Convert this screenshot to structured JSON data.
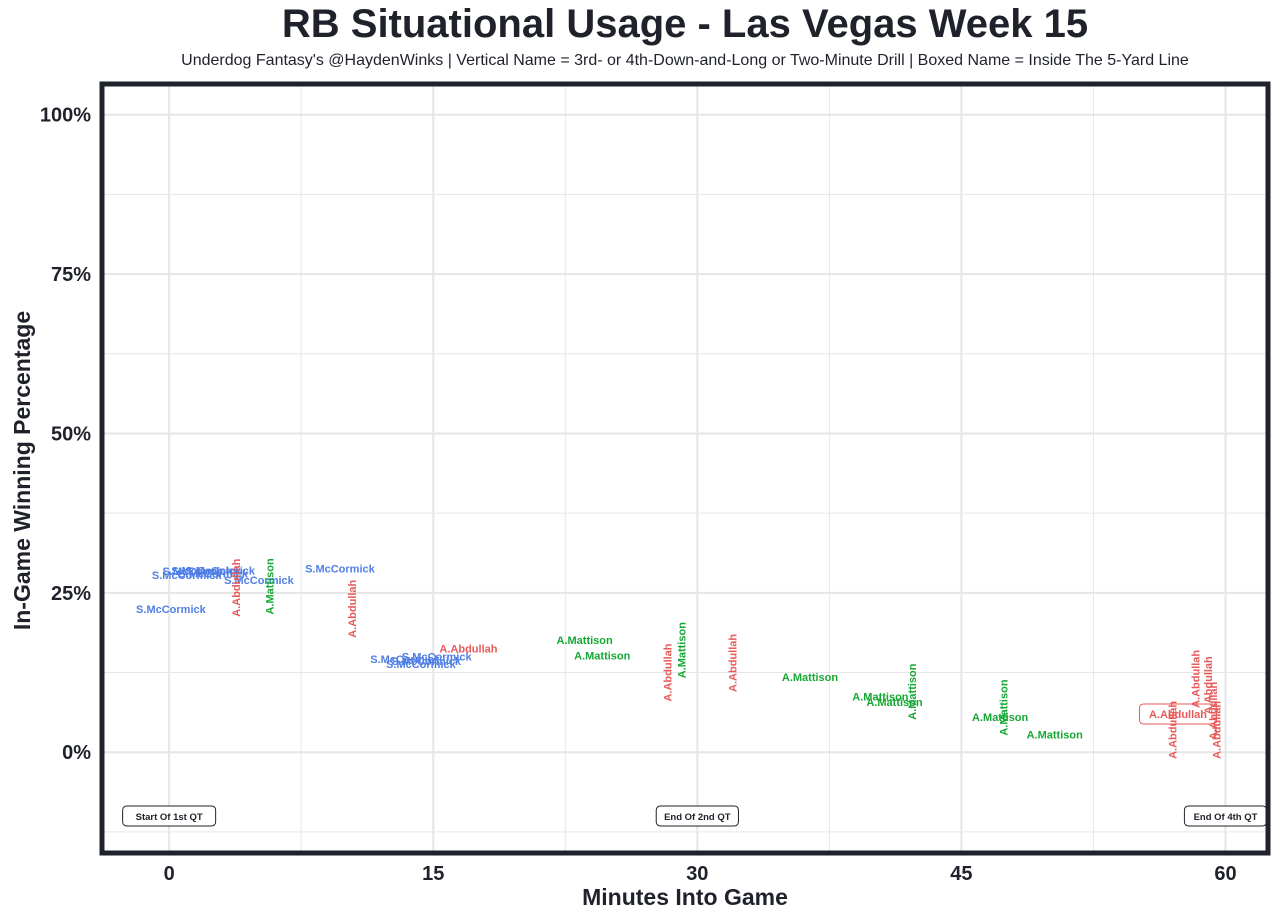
{
  "chart_data": {
    "type": "scatter",
    "title": "RB Situational Usage - Las Vegas Week 15",
    "subtitle": "Underdog Fantasy's @HaydenWinks | Vertical Name = 3rd- or 4th-Down-and-Long or Two-Minute Drill | Boxed Name = Inside The 5-Yard Line",
    "xlabel": "Minutes Into Game",
    "ylabel": "In-Game Winning Percentage",
    "xlim": [
      -3.7,
      62.3
    ],
    "ylim": [
      -15.5,
      104.5
    ],
    "xticks": [
      0,
      15,
      30,
      45,
      60
    ],
    "xtick_labels": [
      "0",
      "15",
      "30",
      "45",
      "60"
    ],
    "yticks": [
      0,
      25,
      50,
      75,
      100
    ],
    "ytick_labels": [
      "0%",
      "25%",
      "50%",
      "75%",
      "100%"
    ],
    "grid": true,
    "colors": {
      "S.McCormick": "#4f7fe6",
      "A.Abdullah": "#e85a5a",
      "A.Mattison": "#16a834",
      "frame": "#1f222b",
      "grid": "#e6e6e6"
    },
    "points": [
      {
        "player": "S.McCormick",
        "x": 0.1,
        "y": 22.5,
        "style": "normal"
      },
      {
        "player": "S.McCormick",
        "x": 1.0,
        "y": 27.8,
        "style": "normal"
      },
      {
        "player": "S.McCormick",
        "x": 1.6,
        "y": 28.4,
        "style": "normal"
      },
      {
        "player": "S.McCormick",
        "x": 2.1,
        "y": 28.5,
        "style": "normal"
      },
      {
        "player": "S.McCormick",
        "x": 2.5,
        "y": 28.0,
        "style": "normal"
      },
      {
        "player": "S.McCormick",
        "x": 2.9,
        "y": 28.5,
        "style": "normal"
      },
      {
        "player": "S.McCormick",
        "x": 5.1,
        "y": 27.0,
        "style": "normal"
      },
      {
        "player": "S.McCormick",
        "x": 9.7,
        "y": 28.8,
        "style": "normal"
      },
      {
        "player": "A.Abdullah",
        "x": 3.8,
        "y": 25.8,
        "style": "vertical"
      },
      {
        "player": "A.Mattison",
        "x": 5.7,
        "y": 26.0,
        "style": "vertical"
      },
      {
        "player": "A.Abdullah",
        "x": 10.4,
        "y": 22.5,
        "style": "vertical"
      },
      {
        "player": "S.McCormick",
        "x": 13.4,
        "y": 14.6,
        "style": "normal"
      },
      {
        "player": "S.McCormick",
        "x": 14.3,
        "y": 13.8,
        "style": "normal"
      },
      {
        "player": "S.McCormick",
        "x": 14.6,
        "y": 14.3,
        "style": "normal"
      },
      {
        "player": "S.McCormick",
        "x": 15.2,
        "y": 15.0,
        "style": "normal"
      },
      {
        "player": "A.Abdullah",
        "x": 17.0,
        "y": 16.3,
        "style": "normal"
      },
      {
        "player": "A.Mattison",
        "x": 23.6,
        "y": 17.6,
        "style": "normal"
      },
      {
        "player": "A.Mattison",
        "x": 24.6,
        "y": 15.2,
        "style": "normal"
      },
      {
        "player": "A.Abdullah",
        "x": 28.3,
        "y": 12.5,
        "style": "vertical"
      },
      {
        "player": "A.Mattison",
        "x": 29.1,
        "y": 16.0,
        "style": "vertical"
      },
      {
        "player": "A.Abdullah",
        "x": 32.0,
        "y": 14.0,
        "style": "vertical"
      },
      {
        "player": "A.Mattison",
        "x": 36.4,
        "y": 11.8,
        "style": "normal"
      },
      {
        "player": "A.Mattison",
        "x": 40.4,
        "y": 8.7,
        "style": "normal"
      },
      {
        "player": "A.Mattison",
        "x": 41.2,
        "y": 7.9,
        "style": "normal"
      },
      {
        "player": "A.Mattison",
        "x": 42.2,
        "y": 9.5,
        "style": "vertical"
      },
      {
        "player": "A.Mattison",
        "x": 47.2,
        "y": 5.5,
        "style": "normal"
      },
      {
        "player": "A.Mattison",
        "x": 47.4,
        "y": 7.0,
        "style": "vertical"
      },
      {
        "player": "A.Mattison",
        "x": 50.3,
        "y": 2.8,
        "style": "normal"
      },
      {
        "player": "A.Abdullah",
        "x": 57.3,
        "y": 6.0,
        "style": "boxed"
      },
      {
        "player": "A.Abdullah",
        "x": 57.0,
        "y": 3.5,
        "style": "vertical"
      },
      {
        "player": "A.Abdullah",
        "x": 58.3,
        "y": 11.5,
        "style": "vertical"
      },
      {
        "player": "A.Abdullah",
        "x": 59.0,
        "y": 10.5,
        "style": "vertical"
      },
      {
        "player": "A.Abdullah",
        "x": 59.3,
        "y": 6.5,
        "style": "vertical"
      },
      {
        "player": "A.Abdullah",
        "x": 59.5,
        "y": 3.5,
        "style": "vertical"
      }
    ],
    "annotations": [
      {
        "label": "Start Of 1st QT",
        "x": 0,
        "y": -10
      },
      {
        "label": "End Of 2nd QT",
        "x": 30,
        "y": -10
      },
      {
        "label": "End Of 4th QT",
        "x": 60,
        "y": -10
      }
    ]
  }
}
